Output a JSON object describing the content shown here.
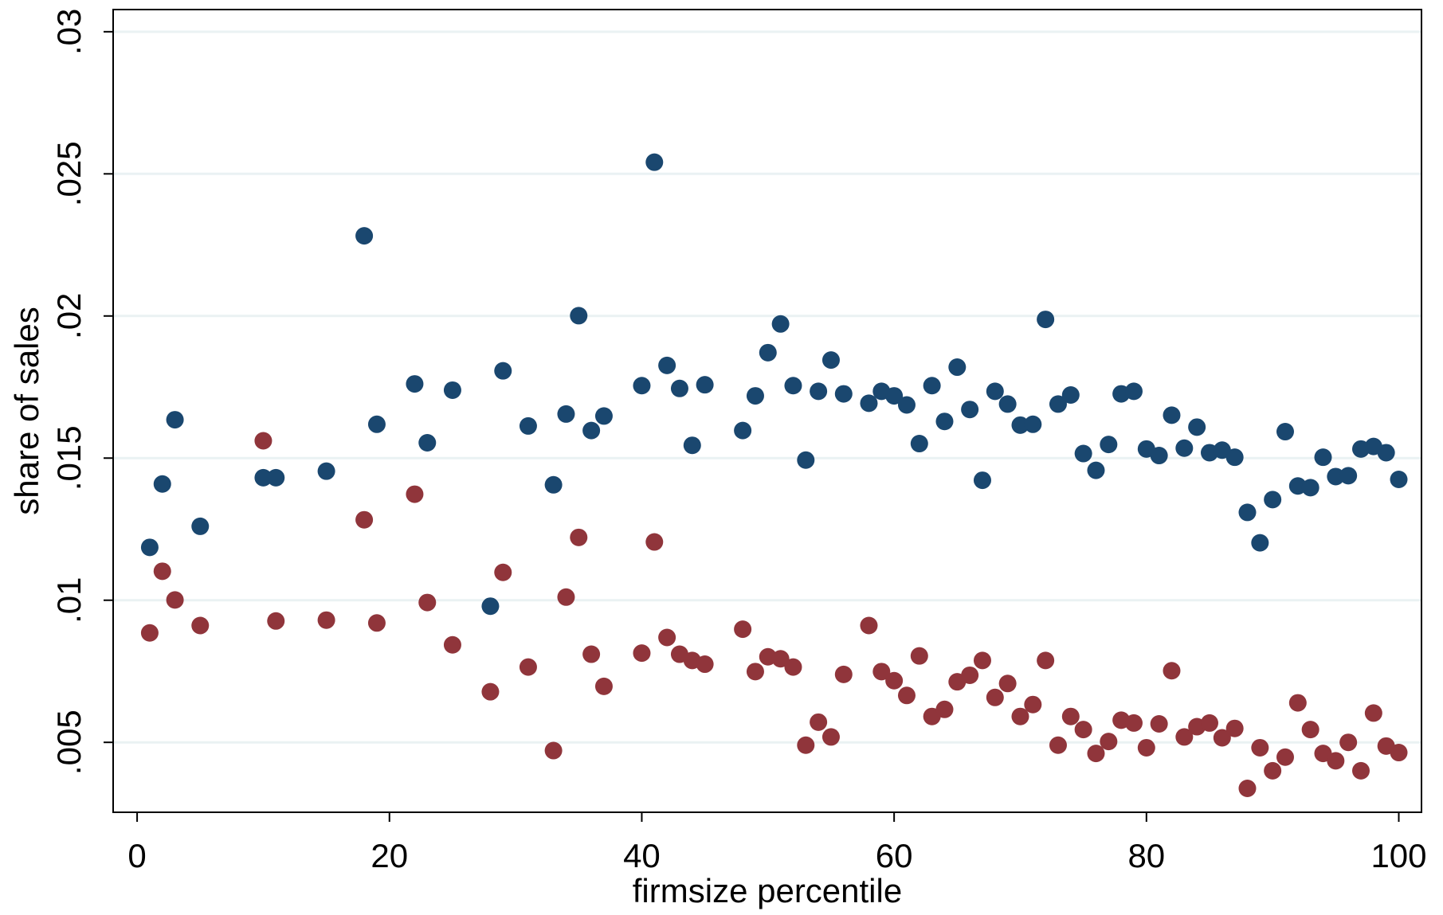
{
  "chart_data": {
    "type": "scatter",
    "x_label": "firmsize percentile",
    "y_label": "share of sales",
    "xlim": [
      -1.9,
      101.8
    ],
    "ylim": [
      0.00254,
      0.03078
    ],
    "xticks": [
      0,
      20,
      40,
      60,
      80,
      100
    ],
    "yticks": [
      {
        "value": 0.005,
        "label": ".005"
      },
      {
        "value": 0.01,
        "label": ".01"
      },
      {
        "value": 0.015,
        "label": ".015"
      },
      {
        "value": 0.02,
        "label": ".02"
      },
      {
        "value": 0.025,
        "label": ".025"
      },
      {
        "value": 0.03,
        "label": ".03"
      }
    ],
    "grid": true,
    "grid_color": "#eaf2f3",
    "x": [
      1,
      2,
      3,
      5,
      10,
      11,
      15,
      18,
      19,
      22,
      23,
      25,
      28,
      29,
      31,
      33,
      34,
      35,
      36,
      37,
      40,
      41,
      42,
      43,
      44,
      45,
      48,
      49,
      50,
      51,
      52,
      53,
      54,
      55,
      56,
      58,
      59,
      60,
      61,
      62,
      63,
      64,
      65,
      66,
      67,
      68,
      69,
      70,
      71,
      72,
      73,
      74,
      75,
      76,
      77,
      78,
      79,
      80,
      81,
      82,
      83,
      84,
      85,
      86,
      87,
      88,
      89,
      90,
      91,
      92,
      93,
      94,
      95,
      96,
      97,
      98,
      99,
      100
    ],
    "series": [
      {
        "color": "#1a476f",
        "values": [
          0.01186,
          0.01409,
          0.01635,
          0.0126,
          0.01431,
          0.01431,
          0.01454,
          0.02282,
          0.01619,
          0.01761,
          0.01554,
          0.01739,
          0.00979,
          0.01807,
          0.01613,
          0.01406,
          0.01655,
          0.02001,
          0.01597,
          0.01648,
          0.01755,
          0.02541,
          0.01826,
          0.01745,
          0.01545,
          0.01758,
          0.01597,
          0.01719,
          0.01871,
          0.01972,
          0.01755,
          0.01493,
          0.01735,
          0.01845,
          0.01726,
          0.01693,
          0.01735,
          0.01719,
          0.01687,
          0.01551,
          0.01755,
          0.01629,
          0.0182,
          0.01671,
          0.01422,
          0.01735,
          0.0169,
          0.01616,
          0.01619,
          0.01988,
          0.0169,
          0.01722,
          0.01516,
          0.01457,
          0.01548,
          0.01726,
          0.01735,
          0.01532,
          0.01509,
          0.01651,
          0.01535,
          0.01609,
          0.01519,
          0.01528,
          0.01503,
          0.01309,
          0.01202,
          0.01354,
          0.01593,
          0.01402,
          0.01396,
          0.01503,
          0.01435,
          0.01438,
          0.01532,
          0.01541,
          0.01519,
          0.01425
        ]
      },
      {
        "color": "#90353b",
        "values": [
          0.00885,
          0.01102,
          0.01001,
          0.00911,
          0.01561,
          0.00927,
          0.0093,
          0.01283,
          0.0092,
          0.01373,
          0.00992,
          0.00843,
          0.00678,
          0.01098,
          0.00765,
          0.00471,
          0.01011,
          0.01221,
          0.0081,
          0.00697,
          0.00814,
          0.01205,
          0.00869,
          0.0081,
          0.00788,
          0.00775,
          0.00898,
          0.00749,
          0.00801,
          0.00794,
          0.00765,
          0.0049,
          0.00571,
          0.00519,
          0.00739,
          0.00911,
          0.00749,
          0.00717,
          0.00665,
          0.00804,
          0.00591,
          0.00616,
          0.00713,
          0.00736,
          0.00788,
          0.00658,
          0.00707,
          0.00591,
          0.00633,
          0.00788,
          0.0049,
          0.00591,
          0.00545,
          0.00461,
          0.00503,
          0.00578,
          0.00568,
          0.00481,
          0.00565,
          0.00752,
          0.00519,
          0.00555,
          0.00568,
          0.00516,
          0.00549,
          0.00338,
          0.00481,
          0.004,
          0.00448,
          0.00639,
          0.00545,
          0.00461,
          0.00435,
          0.005,
          0.004,
          0.00603,
          0.00487,
          0.00464
        ]
      }
    ]
  }
}
